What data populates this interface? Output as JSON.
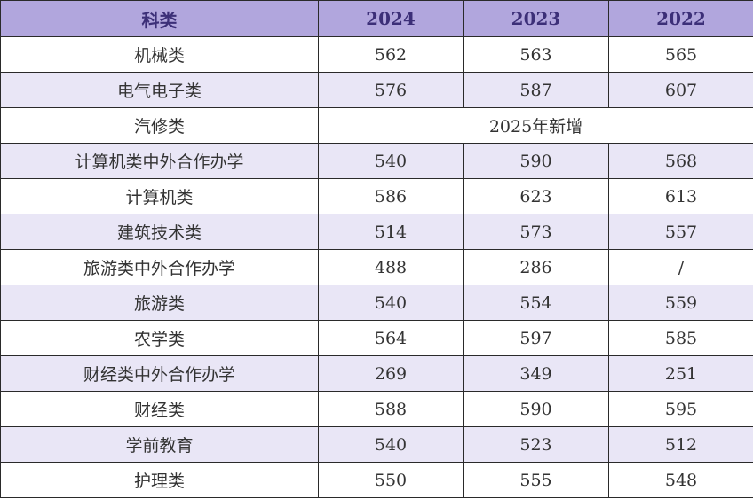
{
  "table": {
    "headers": [
      "科类",
      "2024",
      "2023",
      "2022"
    ],
    "rows": [
      {
        "category": "机械类",
        "y2024": "562",
        "y2023": "563",
        "y2022": "565"
      },
      {
        "category": "电气电子类",
        "y2024": "576",
        "y2023": "587",
        "y2022": "607"
      },
      {
        "category": "汽修类",
        "merged_note": "2025年新增"
      },
      {
        "category": "计算机类中外合作办学",
        "y2024": "540",
        "y2023": "590",
        "y2022": "568"
      },
      {
        "category": "计算机类",
        "y2024": "586",
        "y2023": "623",
        "y2022": "613"
      },
      {
        "category": "建筑技术类",
        "y2024": "514",
        "y2023": "573",
        "y2022": "557"
      },
      {
        "category": "旅游类中外合作办学",
        "y2024": "488",
        "y2023": "286",
        "y2022": "/"
      },
      {
        "category": "旅游类",
        "y2024": "540",
        "y2023": "554",
        "y2022": "559"
      },
      {
        "category": "农学类",
        "y2024": "564",
        "y2023": "597",
        "y2022": "585"
      },
      {
        "category": "财经类中外合作办学",
        "y2024": "269",
        "y2023": "349",
        "y2022": "251"
      },
      {
        "category": "财经类",
        "y2024": "588",
        "y2023": "590",
        "y2022": "595"
      },
      {
        "category": "学前教育",
        "y2024": "540",
        "y2023": "523",
        "y2022": "512"
      },
      {
        "category": "护理类",
        "y2024": "550",
        "y2023": "555",
        "y2022": "548"
      }
    ]
  },
  "colors": {
    "header_bg": "#b1a6dd",
    "header_text": "#3c2f78",
    "stripe_bg": "#e9e6f6",
    "border": "#2a2a2a"
  }
}
